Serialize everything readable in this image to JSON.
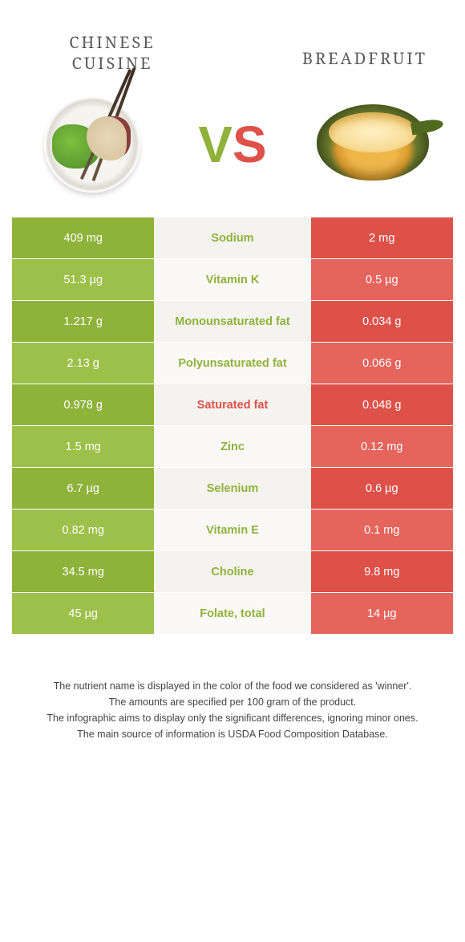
{
  "colors": {
    "leftFood": "#8fb23b",
    "rightFood": "#de5149",
    "leftFoodAlt": "#9cc04a",
    "rightFoodAlt": "#e5645c",
    "midBg": "#f4f3f0",
    "midBgAlt": "#faf9f7"
  },
  "header": {
    "leftTitle": "Chinese cuisine",
    "rightTitle": "Breadfruit"
  },
  "table": {
    "rows": [
      {
        "left": "409 mg",
        "label": "Sodium",
        "right": "2 mg",
        "winner": "left"
      },
      {
        "left": "51.3 µg",
        "label": "Vitamin K",
        "right": "0.5 µg",
        "winner": "left"
      },
      {
        "left": "1.217 g",
        "label": "Monounsaturated fat",
        "right": "0.034 g",
        "winner": "left"
      },
      {
        "left": "2.13 g",
        "label": "Polyunsaturated fat",
        "right": "0.066 g",
        "winner": "left"
      },
      {
        "left": "0.978 g",
        "label": "Saturated fat",
        "right": "0.048 g",
        "winner": "right"
      },
      {
        "left": "1.5 mg",
        "label": "Zinc",
        "right": "0.12 mg",
        "winner": "left"
      },
      {
        "left": "6.7 µg",
        "label": "Selenium",
        "right": "0.6 µg",
        "winner": "left"
      },
      {
        "left": "0.82 mg",
        "label": "Vitamin E",
        "right": "0.1 mg",
        "winner": "left"
      },
      {
        "left": "34.5 mg",
        "label": "Choline",
        "right": "9.8 mg",
        "winner": "left"
      },
      {
        "left": "45 µg",
        "label": "Folate, total",
        "right": "14 µg",
        "winner": "left"
      }
    ]
  },
  "notes": [
    "The nutrient name is displayed in the color of the food we considered as 'winner'.",
    "The amounts are specified per 100 gram of the product.",
    "The infographic aims to display only the significant differences, ignoring minor ones.",
    "The main source of information is USDA Food Composition Database."
  ]
}
